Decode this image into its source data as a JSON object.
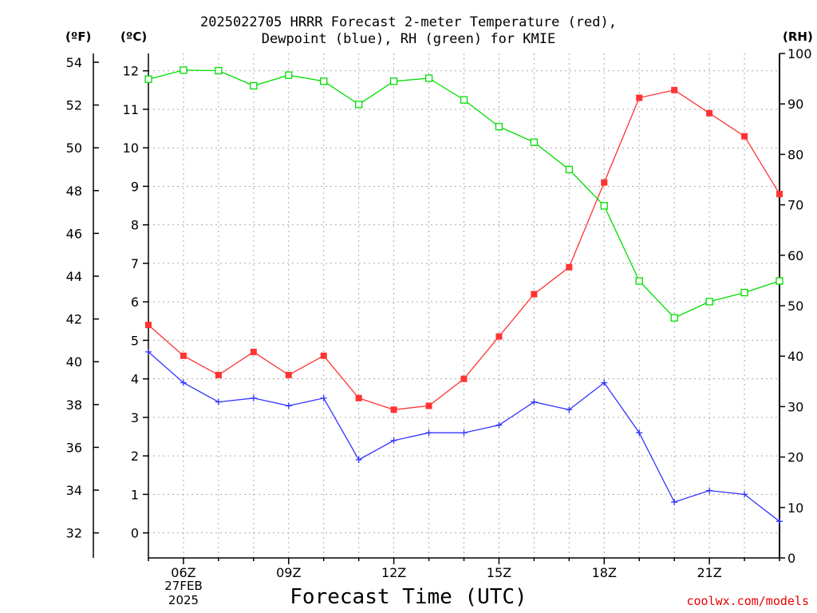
{
  "title_line1": "2025022705 HRRR Forecast 2-meter Temperature (red),",
  "title_line2": "Dewpoint (blue), RH (green) for KMIE",
  "units": {
    "fahrenheit": "(ºF)",
    "celsius": "(ºC)",
    "rh": "(RH)"
  },
  "xlabel": "Forecast Time (UTC)",
  "watermark": "coolwx.com/models",
  "date_label": {
    "day": "27FEB",
    "year": "2025"
  },
  "chart_data": {
    "type": "line",
    "title": "2025022705 HRRR Forecast 2-meter Temperature (red), Dewpoint (blue), RH (green) for KMIE",
    "xlabel": "Forecast Time (UTC)",
    "x_hours_utc": [
      5,
      6,
      7,
      8,
      9,
      10,
      11,
      12,
      13,
      14,
      15,
      16,
      17,
      18,
      19,
      20,
      21,
      22,
      23
    ],
    "xtick_labels": [
      "06Z",
      "09Z",
      "12Z",
      "15Z",
      "18Z",
      "21Z"
    ],
    "xtick_hours": [
      6,
      9,
      12,
      15,
      18,
      21
    ],
    "xlim": [
      5,
      23
    ],
    "left_axis_f": {
      "label": "(ºF)",
      "ticks": [
        32,
        34,
        36,
        38,
        40,
        42,
        44,
        46,
        48,
        50,
        52,
        54
      ]
    },
    "left_axis_c": {
      "label": "(ºC)",
      "ylim": [
        -0.65,
        12.45
      ],
      "ticks": [
        0,
        1,
        2,
        3,
        4,
        5,
        6,
        7,
        8,
        9,
        10,
        11,
        12
      ]
    },
    "right_axis_rh": {
      "label": "(RH)",
      "ylim": [
        0,
        100
      ],
      "ticks": [
        0,
        10,
        20,
        30,
        40,
        50,
        60,
        70,
        80,
        90,
        100
      ]
    },
    "grid": true,
    "series": [
      {
        "name": "Temperature",
        "axis": "c",
        "color": "#ff3333",
        "marker": "filled-square",
        "values": [
          5.4,
          4.6,
          4.1,
          4.7,
          4.1,
          4.6,
          3.5,
          3.2,
          3.3,
          4.0,
          5.1,
          6.2,
          6.9,
          9.1,
          11.3,
          11.5,
          10.9,
          10.3,
          8.8
        ]
      },
      {
        "name": "Dewpoint",
        "axis": "c",
        "color": "#3333ff",
        "marker": "plus",
        "values": [
          4.7,
          3.9,
          3.4,
          3.5,
          3.3,
          3.5,
          1.9,
          2.4,
          2.6,
          2.6,
          2.8,
          3.4,
          3.2,
          3.9,
          2.6,
          0.8,
          1.1,
          1.0,
          0.3
        ]
      },
      {
        "name": "RH",
        "axis": "rh",
        "color": "#00dd00",
        "marker": "open-square",
        "values": [
          94.9,
          96.7,
          96.6,
          93.6,
          95.7,
          94.5,
          89.9,
          94.5,
          95.1,
          90.8,
          85.5,
          82.4,
          77.0,
          69.8,
          54.9,
          47.6,
          50.8,
          52.6,
          54.9
        ]
      }
    ]
  }
}
